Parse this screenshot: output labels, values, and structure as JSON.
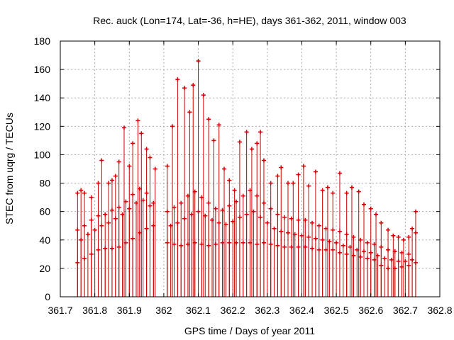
{
  "chart_data": {
    "type": "scatter",
    "title": "Rec. auck (Lon=174, Lat=-36, h=HE), days 361-362, 2011, window 003",
    "xlabel": "GPS time / Days of year 2011",
    "ylabel": "STEC from uqrg / TECUs",
    "xlim": [
      361.7,
      362.8
    ],
    "ylim": [
      0,
      180
    ],
    "x_ticks": [
      "361.7",
      "361.8",
      "361.9",
      "362",
      "362.1",
      "362.2",
      "362.3",
      "362.4",
      "362.5",
      "362.6",
      "362.7",
      "362.8"
    ],
    "y_ticks": [
      "0",
      "20",
      "40",
      "60",
      "80",
      "100",
      "120",
      "140",
      "160",
      "180"
    ],
    "grid": true,
    "color": "#cc0000",
    "style": "points with error bars from 0",
    "series": [
      {
        "values": [
          [
            361.75,
            73
          ],
          [
            361.76,
            75
          ],
          [
            361.77,
            73
          ],
          [
            361.79,
            70
          ],
          [
            361.81,
            80
          ],
          [
            361.82,
            96
          ],
          [
            361.84,
            80
          ],
          [
            361.85,
            82
          ],
          [
            361.86,
            85
          ],
          [
            361.87,
            95
          ],
          [
            361.885,
            119
          ],
          [
            361.9,
            92
          ],
          [
            361.91,
            108
          ],
          [
            361.925,
            124
          ],
          [
            361.935,
            115
          ],
          [
            361.95,
            104
          ],
          [
            361.96,
            98
          ],
          [
            361.975,
            90
          ],
          [
            362.01,
            92
          ],
          [
            362.025,
            120
          ],
          [
            362.04,
            153
          ],
          [
            362.06,
            147
          ],
          [
            362.075,
            130
          ],
          [
            362.085,
            149
          ],
          [
            362.1,
            166
          ],
          [
            362.115,
            142
          ],
          [
            362.13,
            125
          ],
          [
            362.145,
            110
          ],
          [
            362.16,
            121
          ],
          [
            362.175,
            90
          ],
          [
            362.19,
            82
          ],
          [
            362.205,
            75
          ],
          [
            362.22,
            109
          ],
          [
            362.24,
            116
          ],
          [
            362.255,
            104
          ],
          [
            362.27,
            108
          ],
          [
            362.28,
            116
          ],
          [
            362.29,
            96
          ],
          [
            362.31,
            80
          ],
          [
            362.33,
            85
          ],
          [
            362.34,
            91
          ],
          [
            362.36,
            80
          ],
          [
            362.375,
            80
          ],
          [
            362.39,
            86
          ],
          [
            362.405,
            92
          ],
          [
            362.42,
            78
          ],
          [
            362.44,
            88
          ],
          [
            362.46,
            75
          ],
          [
            362.475,
            77
          ],
          [
            362.49,
            73
          ],
          [
            362.51,
            87
          ],
          [
            362.53,
            73
          ],
          [
            362.545,
            77
          ],
          [
            362.565,
            74
          ],
          [
            362.58,
            65
          ],
          [
            362.6,
            62
          ],
          [
            362.615,
            58
          ],
          [
            362.63,
            52
          ],
          [
            362.65,
            47
          ],
          [
            362.665,
            43
          ],
          [
            362.68,
            42
          ],
          [
            362.695,
            40
          ],
          [
            362.71,
            42
          ],
          [
            362.72,
            48
          ],
          [
            362.73,
            60
          ]
        ]
      },
      {
        "values": [
          [
            361.75,
            47
          ],
          [
            361.77,
            50
          ],
          [
            361.79,
            54
          ],
          [
            361.81,
            57
          ],
          [
            361.83,
            58
          ],
          [
            361.85,
            61
          ],
          [
            361.87,
            63
          ],
          [
            361.89,
            67
          ],
          [
            361.91,
            72
          ],
          [
            361.93,
            76
          ],
          [
            361.95,
            73
          ],
          [
            361.97,
            66
          ],
          [
            362.01,
            60
          ],
          [
            362.03,
            63
          ],
          [
            362.05,
            66
          ],
          [
            362.07,
            71
          ],
          [
            362.09,
            74
          ],
          [
            362.11,
            70
          ],
          [
            362.13,
            66
          ],
          [
            362.15,
            62
          ],
          [
            362.17,
            61
          ],
          [
            362.19,
            64
          ],
          [
            362.21,
            67
          ],
          [
            362.23,
            71
          ],
          [
            362.25,
            75
          ],
          [
            362.27,
            71
          ],
          [
            362.29,
            66
          ],
          [
            362.31,
            62
          ],
          [
            362.33,
            58
          ],
          [
            362.35,
            56
          ],
          [
            362.37,
            55
          ],
          [
            362.39,
            54
          ],
          [
            362.41,
            54
          ],
          [
            362.43,
            52
          ],
          [
            362.45,
            50
          ],
          [
            362.47,
            48
          ],
          [
            362.49,
            47
          ],
          [
            362.51,
            46
          ],
          [
            362.53,
            44
          ],
          [
            362.55,
            42
          ],
          [
            362.57,
            40
          ],
          [
            362.59,
            38
          ],
          [
            362.61,
            37
          ],
          [
            362.63,
            35
          ],
          [
            362.65,
            33
          ],
          [
            362.67,
            32
          ],
          [
            362.69,
            31
          ],
          [
            362.71,
            30
          ],
          [
            362.73,
            45
          ]
        ]
      },
      {
        "values": [
          [
            361.75,
            24
          ],
          [
            361.77,
            27
          ],
          [
            361.79,
            30
          ],
          [
            361.81,
            33
          ],
          [
            361.83,
            34
          ],
          [
            361.85,
            34
          ],
          [
            361.87,
            35
          ],
          [
            361.89,
            38
          ],
          [
            361.91,
            41
          ],
          [
            361.93,
            45
          ],
          [
            361.95,
            48
          ],
          [
            361.97,
            50
          ],
          [
            362.01,
            38
          ],
          [
            362.03,
            37
          ],
          [
            362.05,
            36
          ],
          [
            362.07,
            37
          ],
          [
            362.09,
            38
          ],
          [
            362.11,
            37
          ],
          [
            362.13,
            36
          ],
          [
            362.15,
            37
          ],
          [
            362.17,
            38
          ],
          [
            362.19,
            38
          ],
          [
            362.21,
            38
          ],
          [
            362.23,
            38
          ],
          [
            362.25,
            38
          ],
          [
            362.27,
            37
          ],
          [
            362.29,
            38
          ],
          [
            362.31,
            37
          ],
          [
            362.33,
            36
          ],
          [
            362.35,
            35
          ],
          [
            362.37,
            35
          ],
          [
            362.39,
            35
          ],
          [
            362.41,
            35
          ],
          [
            362.43,
            34
          ],
          [
            362.45,
            33
          ],
          [
            362.47,
            33
          ],
          [
            362.49,
            33
          ],
          [
            362.51,
            31
          ],
          [
            362.53,
            30
          ],
          [
            362.55,
            29
          ],
          [
            362.57,
            28
          ],
          [
            362.59,
            27
          ],
          [
            362.61,
            26
          ],
          [
            362.63,
            22
          ],
          [
            362.65,
            20
          ],
          [
            362.67,
            20
          ],
          [
            362.69,
            21
          ],
          [
            362.71,
            22
          ],
          [
            362.73,
            24
          ]
        ]
      },
      {
        "values": [
          [
            361.76,
            40
          ],
          [
            361.78,
            44
          ],
          [
            361.8,
            47
          ],
          [
            361.82,
            50
          ],
          [
            361.84,
            52
          ],
          [
            361.86,
            55
          ],
          [
            361.88,
            58
          ],
          [
            361.9,
            62
          ],
          [
            361.92,
            66
          ],
          [
            361.94,
            68
          ],
          [
            361.96,
            64
          ],
          [
            362.02,
            50
          ],
          [
            362.04,
            52
          ],
          [
            362.06,
            55
          ],
          [
            362.08,
            58
          ],
          [
            362.1,
            60
          ],
          [
            362.12,
            57
          ],
          [
            362.14,
            54
          ],
          [
            362.16,
            52
          ],
          [
            362.18,
            51
          ],
          [
            362.2,
            53
          ],
          [
            362.22,
            56
          ],
          [
            362.24,
            58
          ],
          [
            362.26,
            60
          ],
          [
            362.28,
            56
          ],
          [
            362.3,
            52
          ],
          [
            362.32,
            48
          ],
          [
            362.34,
            46
          ],
          [
            362.36,
            45
          ],
          [
            362.38,
            44
          ],
          [
            362.4,
            43
          ],
          [
            362.42,
            42
          ],
          [
            362.44,
            41
          ],
          [
            362.46,
            40
          ],
          [
            362.48,
            39
          ],
          [
            362.5,
            38
          ],
          [
            362.52,
            36
          ],
          [
            362.54,
            35
          ],
          [
            362.56,
            33
          ],
          [
            362.58,
            32
          ],
          [
            362.6,
            31
          ],
          [
            362.62,
            29
          ],
          [
            362.64,
            27
          ],
          [
            362.66,
            26
          ],
          [
            362.68,
            25
          ],
          [
            362.7,
            25
          ],
          [
            362.72,
            26
          ]
        ]
      }
    ]
  }
}
